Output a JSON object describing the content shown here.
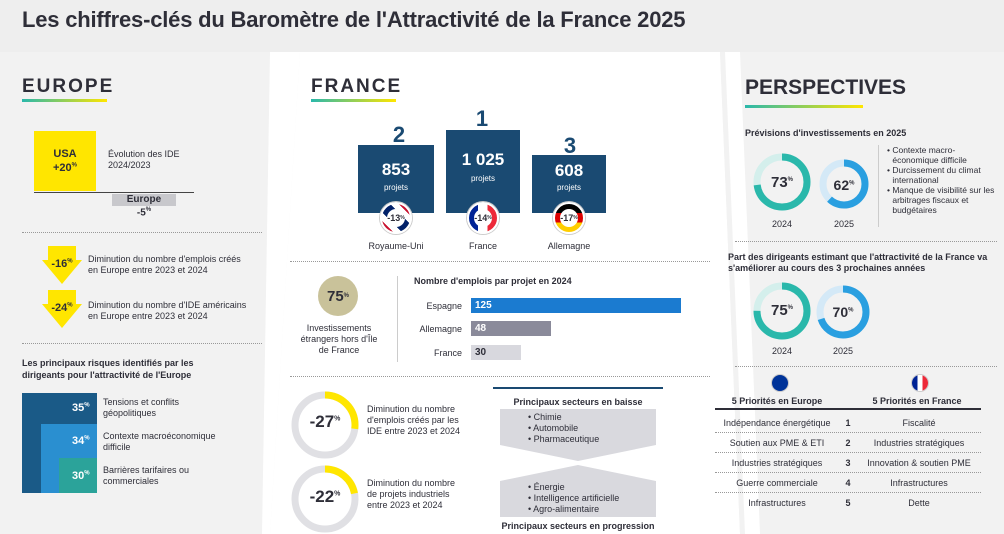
{
  "title": "Les chiffres-clés du Baromètre de l'Attractivité de la France 2025",
  "europe": {
    "heading": "EUROPE",
    "usa_label": "USA",
    "usa_value": "+20",
    "evolution_label": "Évolution des IDE 2024/2023",
    "europe_label": "Europe",
    "europe_value": "-5",
    "jobs": [
      {
        "value": "-16",
        "text": "Diminution du nombre d'emplois créés en Europe entre 2023 et 2024"
      },
      {
        "value": "-24",
        "text": "Diminution du nombre d'IDE américains en Europe entre 2023 et 2024"
      }
    ],
    "risks_title": "Les principaux risques identifiés par les dirigeants pour l'attractivité de l'Europe",
    "risks": [
      {
        "value": "35",
        "label": "Tensions et conflits géopolitiques",
        "color": "#1a5a87"
      },
      {
        "value": "34",
        "label": "Contexte macroéconomique difficile",
        "color": "#2a8fd0"
      },
      {
        "value": "30",
        "label": "Barrières tarifaires ou commerciales",
        "color": "#2ba39a"
      }
    ]
  },
  "france": {
    "heading": "FRANCE",
    "podium": [
      {
        "rank": "2",
        "value": "853",
        "unit": "projets",
        "change": "-13",
        "country": "Royaume-Uni"
      },
      {
        "rank": "1",
        "value": "1 025",
        "unit": "projets",
        "change": "-14",
        "country": "France"
      },
      {
        "rank": "3",
        "value": "608",
        "unit": "projets",
        "change": "-17",
        "country": "Allemagne"
      }
    ],
    "idf_value": "75",
    "idf_label": "Investissements étrangers hors d'Île de France",
    "jobs_title": "Nombre d'emplois par projet en 2024",
    "jobs_bars": [
      {
        "country": "Espagne",
        "value": "125",
        "color": "#1b7bd0",
        "fill": 1.0
      },
      {
        "country": "Allemagne",
        "value": "48",
        "color": "#8a8a9a",
        "fill": 0.38
      },
      {
        "country": "France",
        "value": "30",
        "color": "#d8d8de",
        "fill": 0.24
      }
    ],
    "declines": [
      {
        "value": "-27",
        "text": "Diminution du nombre d'emplois créés par les IDE entre 2023 et 2024",
        "fill": 0.27
      },
      {
        "value": "-22",
        "text": "Diminution du nombre de projets industriels entre 2023 et 2024",
        "fill": 0.22
      }
    ],
    "sectors_down_title": "Principaux secteurs en baisse",
    "sectors_down": [
      "Chimie",
      "Automobile",
      "Pharmaceutique"
    ],
    "sectors_up": [
      "Énergie",
      "Intelligence artificielle",
      "Agro-alimentaire"
    ],
    "sectors_up_title": "Principaux secteurs en progression"
  },
  "perspectives": {
    "heading": "PERSPECTIVES",
    "invest_title": "Prévisions d'investissements en 2025",
    "invest": [
      {
        "value": "73",
        "year": "2024",
        "color": "#2ab8ab",
        "fill": 0.73
      },
      {
        "value": "62",
        "year": "2025",
        "color": "#2a9fe0",
        "fill": 0.62
      }
    ],
    "reasons": [
      "Contexte macro-économique difficile",
      "Durcissement du climat international",
      "Manque de visibilité sur les arbitrages fiscaux et budgétaires"
    ],
    "attract_title": "Part des dirigeants estimant que l'attractivité de la France va s'améliorer au cours des 3 prochaines années",
    "attract": [
      {
        "value": "75",
        "year": "2024",
        "color": "#2ab8ab",
        "fill": 0.75
      },
      {
        "value": "70",
        "year": "2025",
        "color": "#2a9fe0",
        "fill": 0.7
      }
    ],
    "prio_eu_title": "5 Priorités en Europe",
    "prio_fr_title": "5 Priorités en France",
    "priorities": [
      {
        "n": "1",
        "eu": "Indépendance énergétique",
        "fr": "Fiscalité"
      },
      {
        "n": "2",
        "eu": "Soutien aux PME & ETI",
        "fr": "Industries stratégiques"
      },
      {
        "n": "3",
        "eu": "Industries stratégiques",
        "fr": "Innovation & soutien PME"
      },
      {
        "n": "4",
        "eu": "Guerre commerciale",
        "fr": "Infrastructures"
      },
      {
        "n": "5",
        "eu": "Infrastructures",
        "fr": "Dette"
      }
    ]
  },
  "colors": {
    "yellow": "#ffe600",
    "navy": "#1a4a72",
    "teal": "#2ab8ab",
    "blue": "#2a9fe0"
  }
}
